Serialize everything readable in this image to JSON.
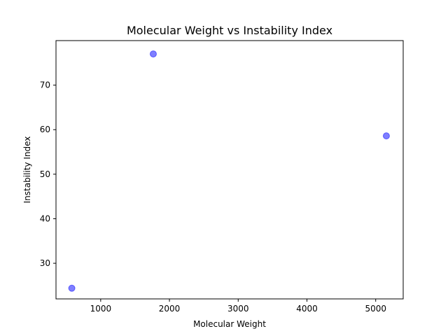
{
  "chart_data": {
    "type": "scatter",
    "title": "Molecular Weight vs Instability Index",
    "xlabel": "Molecular Weight",
    "ylabel": "Instability Index",
    "xlim": [
      350,
      5400
    ],
    "ylim": [
      22,
      80
    ],
    "xticks": [
      1000,
      2000,
      3000,
      4000,
      5000
    ],
    "yticks": [
      30,
      40,
      50,
      60,
      70
    ],
    "grid": false,
    "legend": "none",
    "marker_color": "#0000ff",
    "marker_alpha": 0.5,
    "points": [
      {
        "x": 580,
        "y": 24.4
      },
      {
        "x": 1765,
        "y": 77.0
      },
      {
        "x": 5155,
        "y": 58.6
      }
    ]
  }
}
